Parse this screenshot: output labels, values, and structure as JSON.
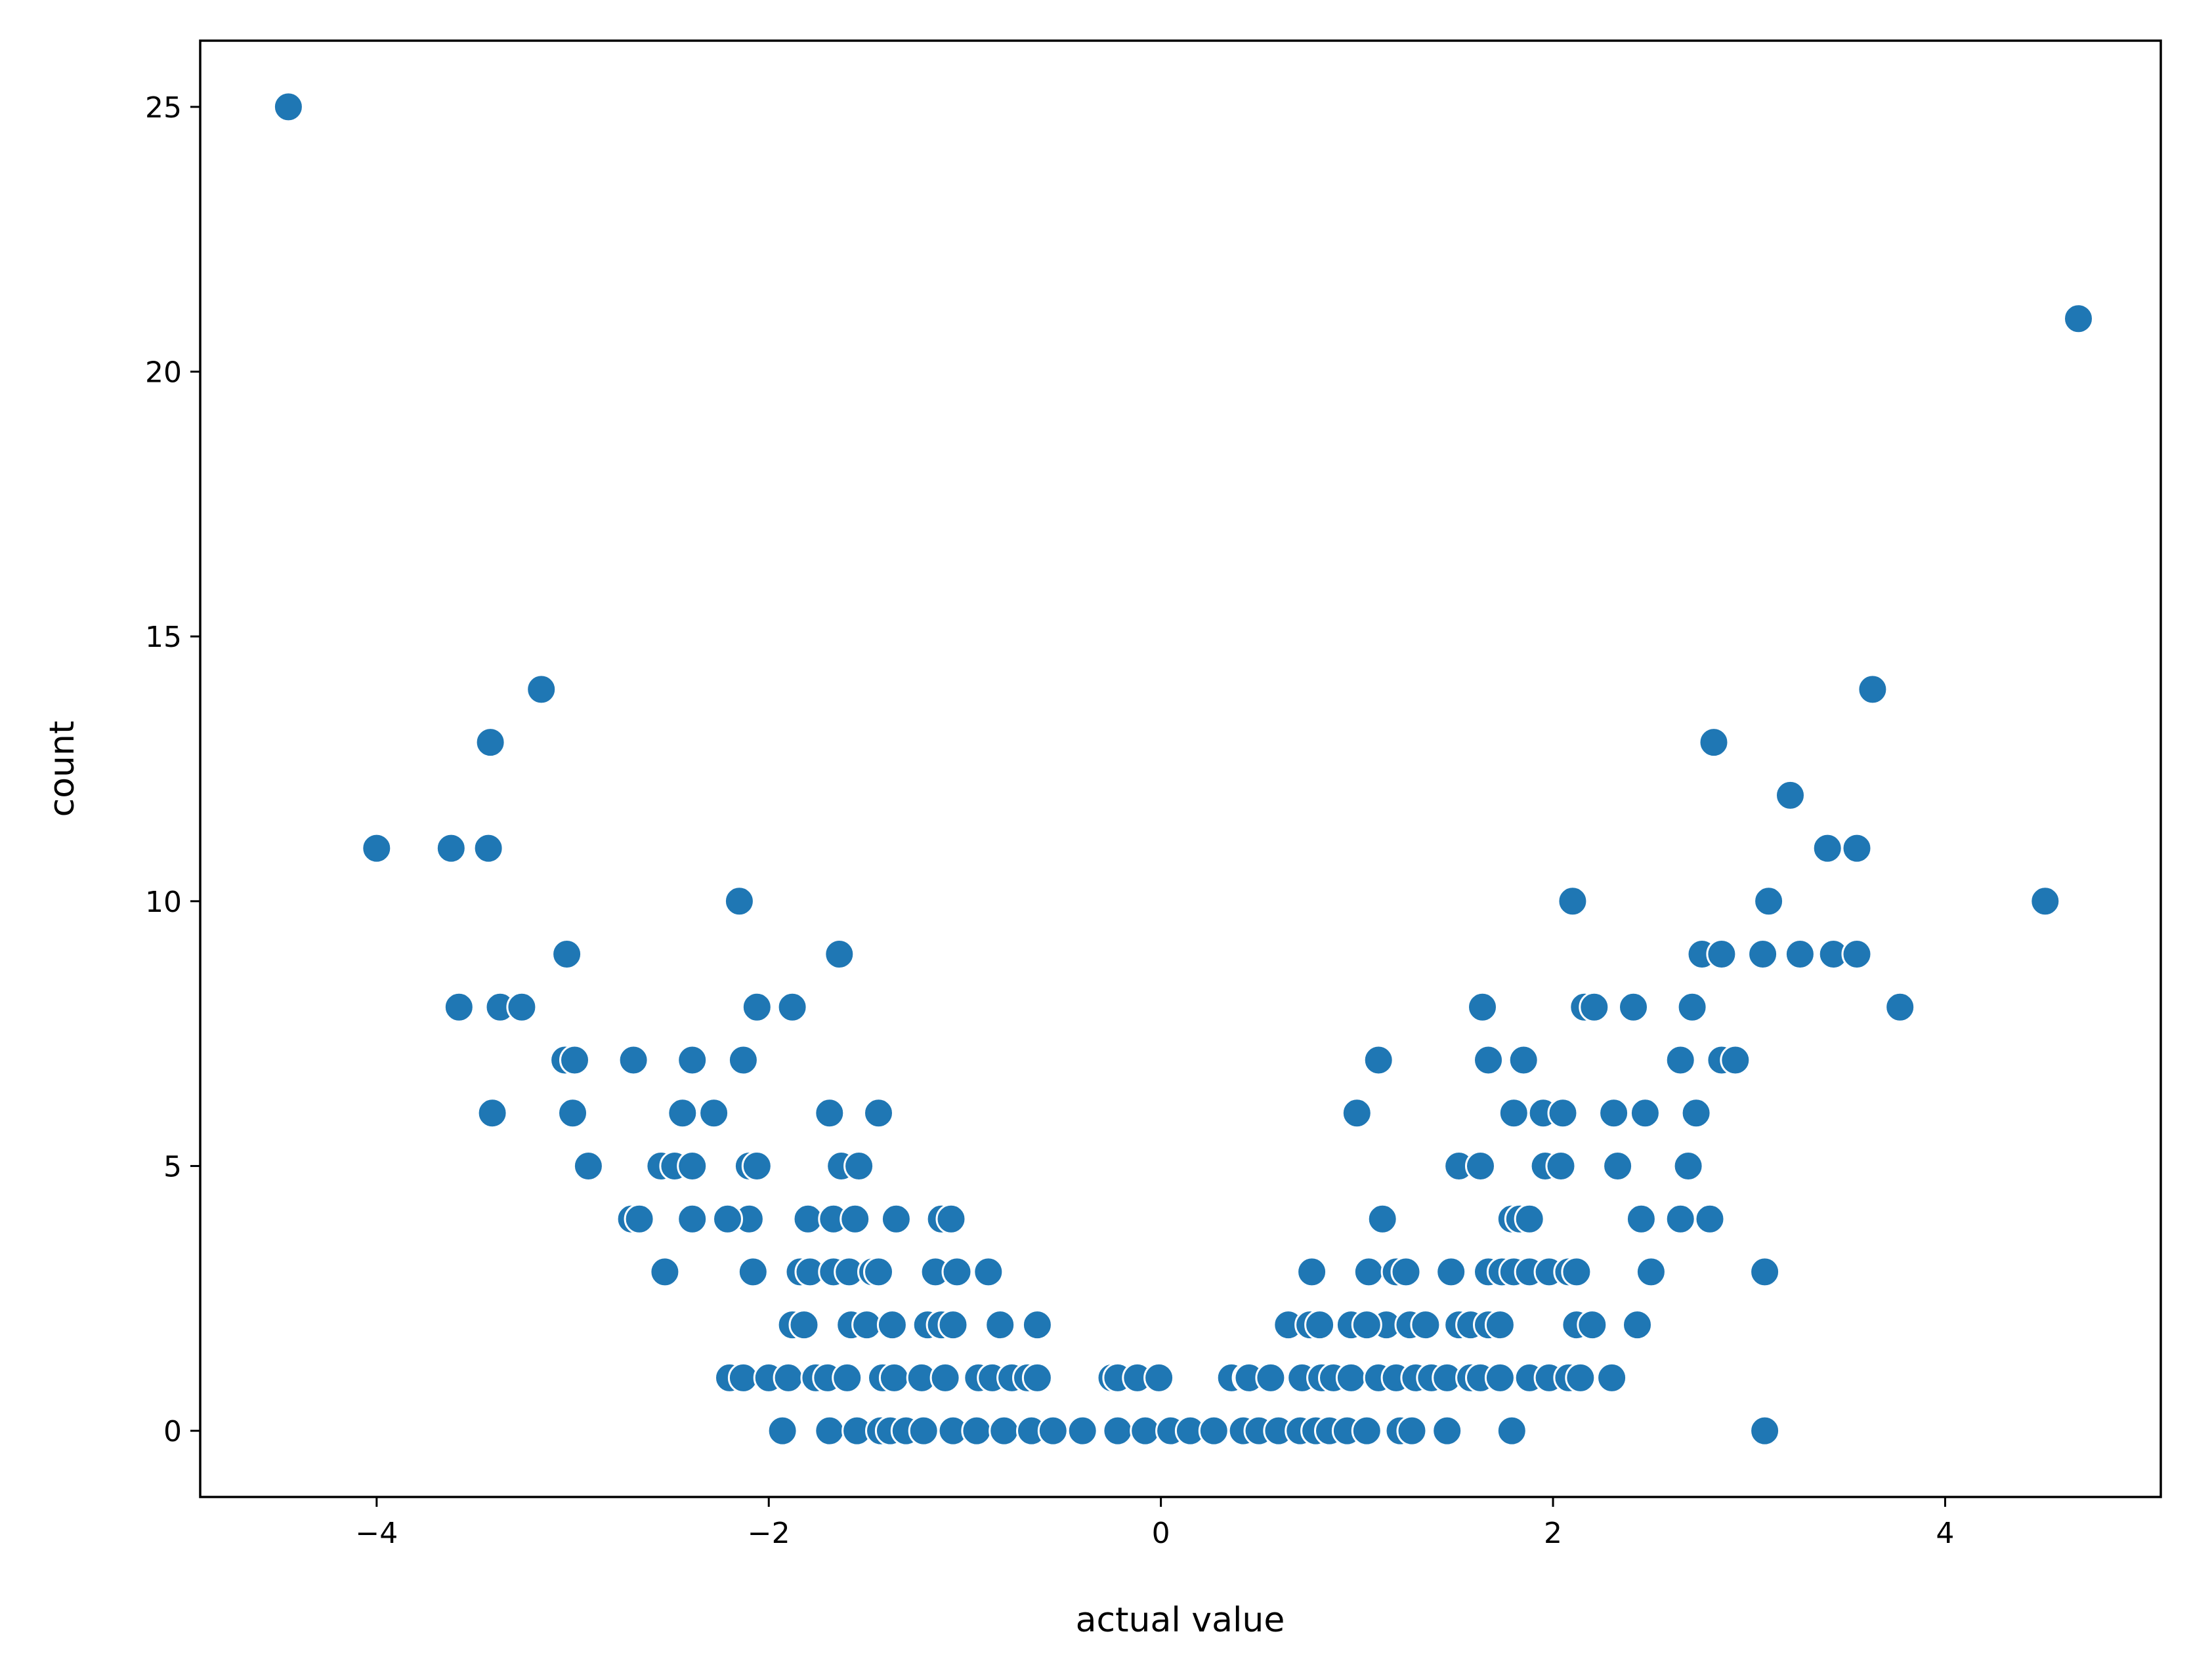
{
  "chart_data": {
    "type": "scatter",
    "title": "",
    "xlabel": "actual value",
    "ylabel": "count",
    "xlim": [
      -4.9,
      5.1
    ],
    "ylim": [
      -1.25,
      26.25
    ],
    "xticks": [
      -4,
      -2,
      0,
      2,
      4
    ],
    "yticks": [
      0,
      5,
      10,
      15,
      20,
      25
    ],
    "xtick_labels": [
      "−4",
      "−2",
      "0",
      "2",
      "4"
    ],
    "ytick_labels": [
      "0",
      "5",
      "10",
      "15",
      "20",
      "25"
    ],
    "grid": false,
    "legend": "none",
    "marker_color": "#1f77b4",
    "points": [
      [
        -4.45,
        25
      ],
      [
        4.68,
        21
      ],
      [
        -4.0,
        11
      ],
      [
        -3.62,
        11
      ],
      [
        -3.43,
        11
      ],
      [
        -3.42,
        13
      ],
      [
        -3.16,
        14
      ],
      [
        -3.58,
        8
      ],
      [
        -3.37,
        8
      ],
      [
        -3.26,
        8
      ],
      [
        -3.41,
        6
      ],
      [
        -3.03,
        9
      ],
      [
        -3.04,
        7
      ],
      [
        -2.99,
        7
      ],
      [
        -3.0,
        6
      ],
      [
        -2.92,
        5
      ],
      [
        -2.69,
        7
      ],
      [
        -2.7,
        4
      ],
      [
        -2.66,
        4
      ],
      [
        -2.53,
        3
      ],
      [
        -2.55,
        5
      ],
      [
        -2.48,
        5
      ],
      [
        -2.39,
        5
      ],
      [
        -2.44,
        6
      ],
      [
        -2.39,
        7
      ],
      [
        -2.39,
        4
      ],
      [
        -2.28,
        6
      ],
      [
        -2.15,
        10
      ],
      [
        -2.13,
        7
      ],
      [
        -2.06,
        8
      ],
      [
        -2.1,
        5
      ],
      [
        -2.06,
        5
      ],
      [
        -2.1,
        4
      ],
      [
        -2.21,
        4
      ],
      [
        -2.08,
        3
      ],
      [
        -2.2,
        1
      ],
      [
        -2.13,
        1
      ],
      [
        -2.0,
        1
      ],
      [
        -1.93,
        0
      ],
      [
        -1.88,
        8
      ],
      [
        -1.84,
        3
      ],
      [
        -1.79,
        3
      ],
      [
        -1.8,
        4
      ],
      [
        -1.88,
        2
      ],
      [
        -1.82,
        2
      ],
      [
        -1.9,
        1
      ],
      [
        -1.76,
        1
      ],
      [
        -1.64,
        9
      ],
      [
        -1.69,
        6
      ],
      [
        -1.63,
        5
      ],
      [
        -1.54,
        5
      ],
      [
        -1.67,
        4
      ],
      [
        -1.56,
        4
      ],
      [
        -1.67,
        3
      ],
      [
        -1.59,
        3
      ],
      [
        -1.47,
        3
      ],
      [
        -1.58,
        2
      ],
      [
        -1.5,
        2
      ],
      [
        -1.7,
        1
      ],
      [
        -1.6,
        1
      ],
      [
        -1.69,
        0
      ],
      [
        -1.55,
        0
      ],
      [
        -1.44,
        6
      ],
      [
        -1.35,
        4
      ],
      [
        -1.44,
        3
      ],
      [
        -1.37,
        2
      ],
      [
        -1.42,
        1
      ],
      [
        -1.36,
        1
      ],
      [
        -1.43,
        0
      ],
      [
        -1.38,
        0
      ],
      [
        -1.3,
        0
      ],
      [
        -1.12,
        4
      ],
      [
        -1.07,
        4
      ],
      [
        -1.15,
        3
      ],
      [
        -1.04,
        3
      ],
      [
        -1.19,
        2
      ],
      [
        -1.12,
        2
      ],
      [
        -1.06,
        2
      ],
      [
        -1.22,
        1
      ],
      [
        -1.1,
        1
      ],
      [
        -1.21,
        0
      ],
      [
        -1.06,
        0
      ],
      [
        -0.88,
        3
      ],
      [
        -0.82,
        2
      ],
      [
        -0.93,
        1
      ],
      [
        -0.86,
        1
      ],
      [
        -0.76,
        1
      ],
      [
        -0.94,
        0
      ],
      [
        -0.8,
        0
      ],
      [
        -0.63,
        2
      ],
      [
        -0.68,
        1
      ],
      [
        -0.63,
        1
      ],
      [
        -0.66,
        0
      ],
      [
        -0.55,
        0
      ],
      [
        -0.4,
        0
      ],
      [
        -0.25,
        1
      ],
      [
        -0.22,
        1
      ],
      [
        -0.12,
        1
      ],
      [
        -0.01,
        1
      ],
      [
        -0.22,
        0
      ],
      [
        -0.08,
        0
      ],
      [
        0.05,
        0
      ],
      [
        0.15,
        0
      ],
      [
        0.27,
        0
      ],
      [
        0.36,
        1
      ],
      [
        0.44,
        1
      ],
      [
        0.45,
        1
      ],
      [
        0.42,
        0
      ],
      [
        0.5,
        0
      ],
      [
        0.6,
        0
      ],
      [
        0.56,
        1
      ],
      [
        0.65,
        2
      ],
      [
        0.76,
        2
      ],
      [
        0.81,
        2
      ],
      [
        0.77,
        3
      ],
      [
        0.72,
        1
      ],
      [
        0.82,
        1
      ],
      [
        0.88,
        1
      ],
      [
        0.71,
        0
      ],
      [
        0.79,
        0
      ],
      [
        0.86,
        0
      ],
      [
        0.95,
        0
      ],
      [
        0.97,
        2
      ],
      [
        1.0,
        6
      ],
      [
        1.06,
        3
      ],
      [
        1.13,
        4
      ],
      [
        1.11,
        7
      ],
      [
        1.15,
        2
      ],
      [
        1.05,
        2
      ],
      [
        0.97,
        1
      ],
      [
        1.11,
        1
      ],
      [
        1.05,
        0
      ],
      [
        1.2,
        3
      ],
      [
        1.25,
        3
      ],
      [
        1.27,
        2
      ],
      [
        1.35,
        2
      ],
      [
        1.2,
        1
      ],
      [
        1.3,
        1
      ],
      [
        1.38,
        1
      ],
      [
        1.22,
        0
      ],
      [
        1.28,
        0
      ],
      [
        1.48,
        3
      ],
      [
        1.52,
        5
      ],
      [
        1.52,
        2
      ],
      [
        1.58,
        2
      ],
      [
        1.46,
        1
      ],
      [
        1.58,
        1
      ],
      [
        1.46,
        0
      ],
      [
        1.64,
        8
      ],
      [
        1.67,
        7
      ],
      [
        1.63,
        5
      ],
      [
        1.67,
        3
      ],
      [
        1.74,
        3
      ],
      [
        1.67,
        2
      ],
      [
        1.73,
        2
      ],
      [
        1.63,
        1
      ],
      [
        1.73,
        1
      ],
      [
        1.79,
        0
      ],
      [
        1.85,
        7
      ],
      [
        1.8,
        6
      ],
      [
        1.79,
        4
      ],
      [
        1.83,
        4
      ],
      [
        1.88,
        4
      ],
      [
        1.8,
        3
      ],
      [
        1.88,
        3
      ],
      [
        1.88,
        1
      ],
      [
        1.98,
        1
      ],
      [
        1.95,
        6
      ],
      [
        2.05,
        6
      ],
      [
        1.96,
        5
      ],
      [
        2.04,
        5
      ],
      [
        1.98,
        3
      ],
      [
        2.08,
        3
      ],
      [
        2.08,
        1
      ],
      [
        2.14,
        1
      ],
      [
        2.1,
        10
      ],
      [
        2.16,
        8
      ],
      [
        2.21,
        8
      ],
      [
        2.12,
        3
      ],
      [
        2.12,
        2
      ],
      [
        2.2,
        2
      ],
      [
        2.31,
        6
      ],
      [
        2.33,
        5
      ],
      [
        2.3,
        1
      ],
      [
        2.41,
        8
      ],
      [
        2.47,
        6
      ],
      [
        2.45,
        4
      ],
      [
        2.5,
        3
      ],
      [
        2.43,
        2
      ],
      [
        2.65,
        7
      ],
      [
        2.71,
        8
      ],
      [
        2.73,
        6
      ],
      [
        2.69,
        5
      ],
      [
        2.65,
        4
      ],
      [
        2.8,
        4
      ],
      [
        2.76,
        9
      ],
      [
        2.86,
        9
      ],
      [
        2.86,
        7
      ],
      [
        2.93,
        7
      ],
      [
        2.82,
        13
      ],
      [
        3.07,
        9
      ],
      [
        3.1,
        10
      ],
      [
        3.08,
        3
      ],
      [
        3.08,
        0
      ],
      [
        3.21,
        12
      ],
      [
        3.26,
        9
      ],
      [
        3.4,
        11
      ],
      [
        3.43,
        9
      ],
      [
        3.55,
        11
      ],
      [
        3.55,
        9
      ],
      [
        3.63,
        14
      ],
      [
        3.77,
        8
      ],
      [
        4.51,
        10
      ]
    ]
  }
}
